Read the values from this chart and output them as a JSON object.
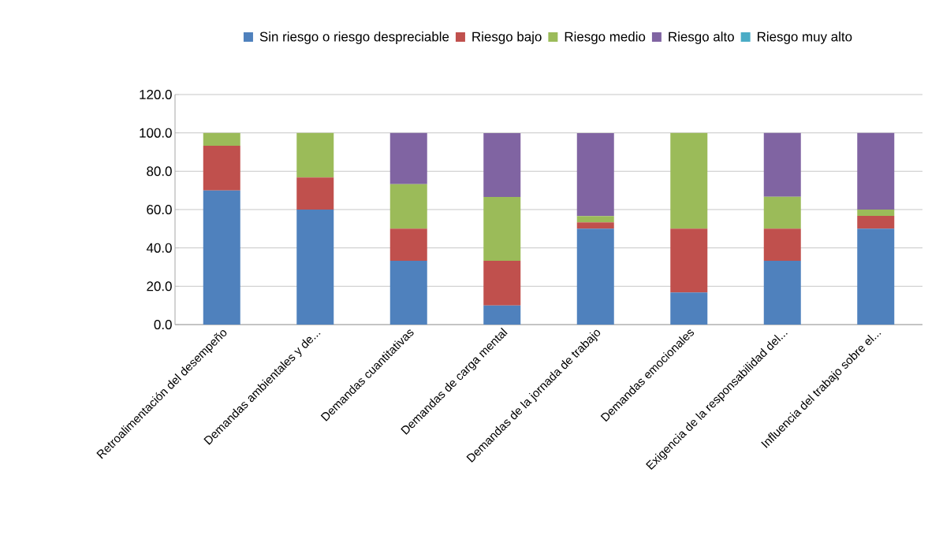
{
  "chart_data": {
    "type": "bar",
    "stacked": true,
    "categories": [
      "Retroalimentación del desempeño",
      "Demandas ambientales y de...",
      "Demandas cuantitativas",
      "Demandas de carga mental",
      "Demandas de la jornada de trabajo",
      "Demandas emocionales",
      "Exigencia de la responsabilidad del...",
      "Influencia del trabajo sobre el..."
    ],
    "series": [
      {
        "name": "Sin riesgo o riesgo despreciable",
        "color": "#4f81bd",
        "values": [
          70,
          60,
          33.3,
          10,
          50,
          16.7,
          33.3,
          50
        ]
      },
      {
        "name": "Riesgo bajo",
        "color": "#c0504d",
        "values": [
          23.3,
          16.7,
          16.7,
          23.3,
          3.3,
          33.3,
          16.7,
          6.7
        ]
      },
      {
        "name": "Riesgo medio",
        "color": "#9bbb59",
        "values": [
          6.7,
          23.3,
          23.3,
          33.3,
          3.3,
          50,
          16.7,
          3.3
        ]
      },
      {
        "name": "Riesgo alto",
        "color": "#8064a2",
        "values": [
          0,
          0,
          26.7,
          33.3,
          43.3,
          0,
          33.3,
          40
        ]
      },
      {
        "name": "Riesgo muy alto",
        "color": "#4bacc6",
        "values": [
          0,
          0,
          0,
          0,
          0,
          0,
          0,
          0
        ]
      }
    ],
    "ylim": [
      0,
      120
    ],
    "yticks": [
      {
        "value": 0,
        "label": "0.0"
      },
      {
        "value": 20,
        "label": "20.0"
      },
      {
        "value": 40,
        "label": "40.0"
      },
      {
        "value": 60,
        "label": "60.0"
      },
      {
        "value": 80,
        "label": "80.0"
      },
      {
        "value": 100,
        "label": "100.0"
      },
      {
        "value": 120,
        "label": "120.0"
      }
    ],
    "grid": "y",
    "legend": "top"
  }
}
